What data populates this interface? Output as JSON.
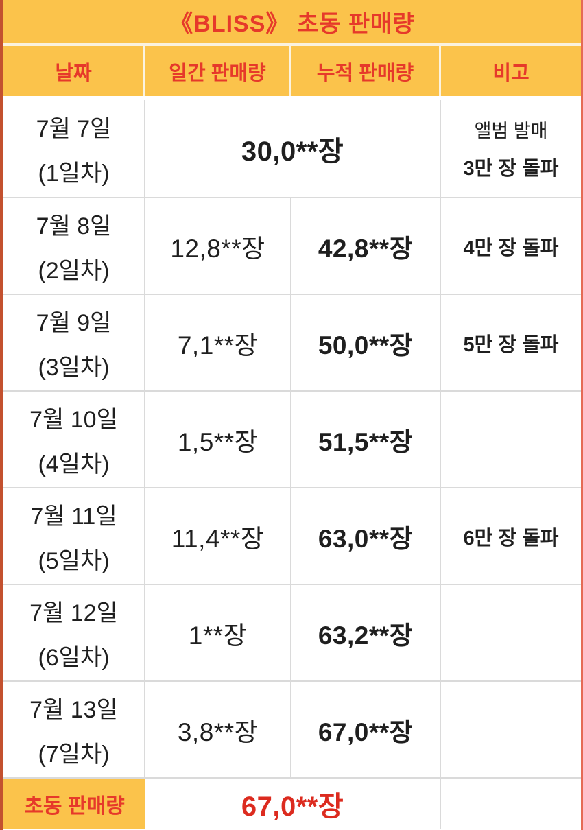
{
  "colors": {
    "band_yellow": "#FBC34B",
    "red_text": "#E6392A",
    "footer_red": "#DC2B1F",
    "border_left": "#C3512F",
    "border_right": "#E56A55",
    "grid_line": "#DADADA",
    "body_text": "#1F1F1F"
  },
  "chart_data": {
    "type": "table",
    "title": "《BLISS》 초동 판매량",
    "columns": [
      "날짜",
      "일간 판매량",
      "누적 판매량",
      "비고"
    ],
    "rows": [
      {
        "date": "7월 7일",
        "day_label": "(1일차)",
        "merged": true,
        "merged_value": "30,0**장",
        "daily": "30,0**장",
        "cumulative": "30,0**장",
        "note_lines": [
          "앨범 발매",
          "3만 장 돌파"
        ]
      },
      {
        "date": "7월 8일",
        "day_label": "(2일차)",
        "merged": false,
        "daily": "12,8**장",
        "cumulative": "42,8**장",
        "note": "4만 장 돌파"
      },
      {
        "date": "7월 9일",
        "day_label": "(3일차)",
        "merged": false,
        "daily": "7,1**장",
        "cumulative": "50,0**장",
        "note": "5만 장 돌파"
      },
      {
        "date": "7월 10일",
        "day_label": "(4일차)",
        "merged": false,
        "daily": "1,5**장",
        "cumulative": "51,5**장",
        "note": ""
      },
      {
        "date": "7월 11일",
        "day_label": "(5일차)",
        "merged": false,
        "daily": "11,4**장",
        "cumulative": "63,0**장",
        "note": "6만 장 돌파"
      },
      {
        "date": "7월 12일",
        "day_label": "(6일차)",
        "merged": false,
        "daily": "1**장",
        "cumulative": "63,2**장",
        "note": ""
      },
      {
        "date": "7월 13일",
        "day_label": "(7일차)",
        "merged": false,
        "daily": "3,8**장",
        "cumulative": "67,0**장",
        "note": ""
      }
    ],
    "footer": {
      "label": "초동 판매량",
      "total": "67,0**장",
      "note": ""
    }
  }
}
